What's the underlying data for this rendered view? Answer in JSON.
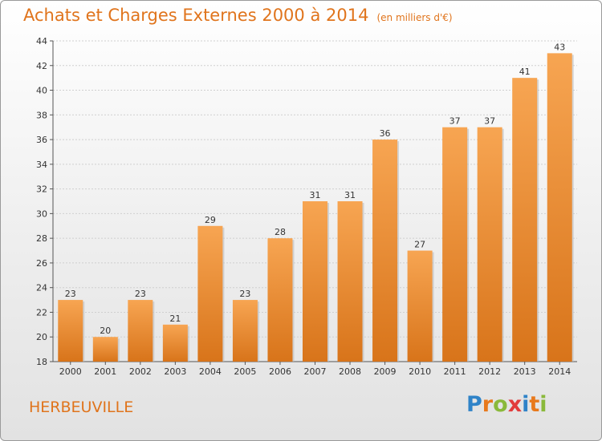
{
  "header": {
    "title": "Achats et Charges Externes 2000 à 2014",
    "unit": "(en milliers d'€)"
  },
  "footer": {
    "town": "HERBEUVILLE",
    "logo_letters": [
      "P",
      "r",
      "o",
      "x",
      "i",
      "t",
      "i"
    ],
    "logo_colors": [
      "#2f83c8",
      "#e8791c",
      "#8ab93a",
      "#e23b3b",
      "#2f83c8",
      "#e8791c",
      "#8ab93a"
    ]
  },
  "chart_data": {
    "type": "bar",
    "title": "Achats et Charges Externes 2000 à 2014",
    "categories": [
      "2000",
      "2001",
      "2002",
      "2003",
      "2004",
      "2005",
      "2006",
      "2007",
      "2008",
      "2009",
      "2010",
      "2011",
      "2012",
      "2013",
      "2014"
    ],
    "values": [
      23,
      20,
      23,
      21,
      29,
      23,
      28,
      31,
      31,
      36,
      27,
      37,
      37,
      41,
      43
    ],
    "value_labels": [
      "23",
      "20",
      "23",
      "21",
      "29",
      "23",
      "28",
      "31",
      "31",
      "36",
      "27",
      "37",
      "37",
      "41",
      "43"
    ],
    "ylim": [
      18,
      44
    ],
    "yticks": [
      18,
      20,
      22,
      24,
      26,
      28,
      30,
      32,
      34,
      36,
      38,
      40,
      42,
      44
    ],
    "ytick_labels": [
      "18",
      "20",
      "22",
      "24",
      "26",
      "28",
      "30",
      "32",
      "34",
      "36",
      "38",
      "40",
      "42",
      "44"
    ],
    "grid": true,
    "bar_color_top": "#f7a552",
    "bar_color_bottom": "#d8741a"
  }
}
